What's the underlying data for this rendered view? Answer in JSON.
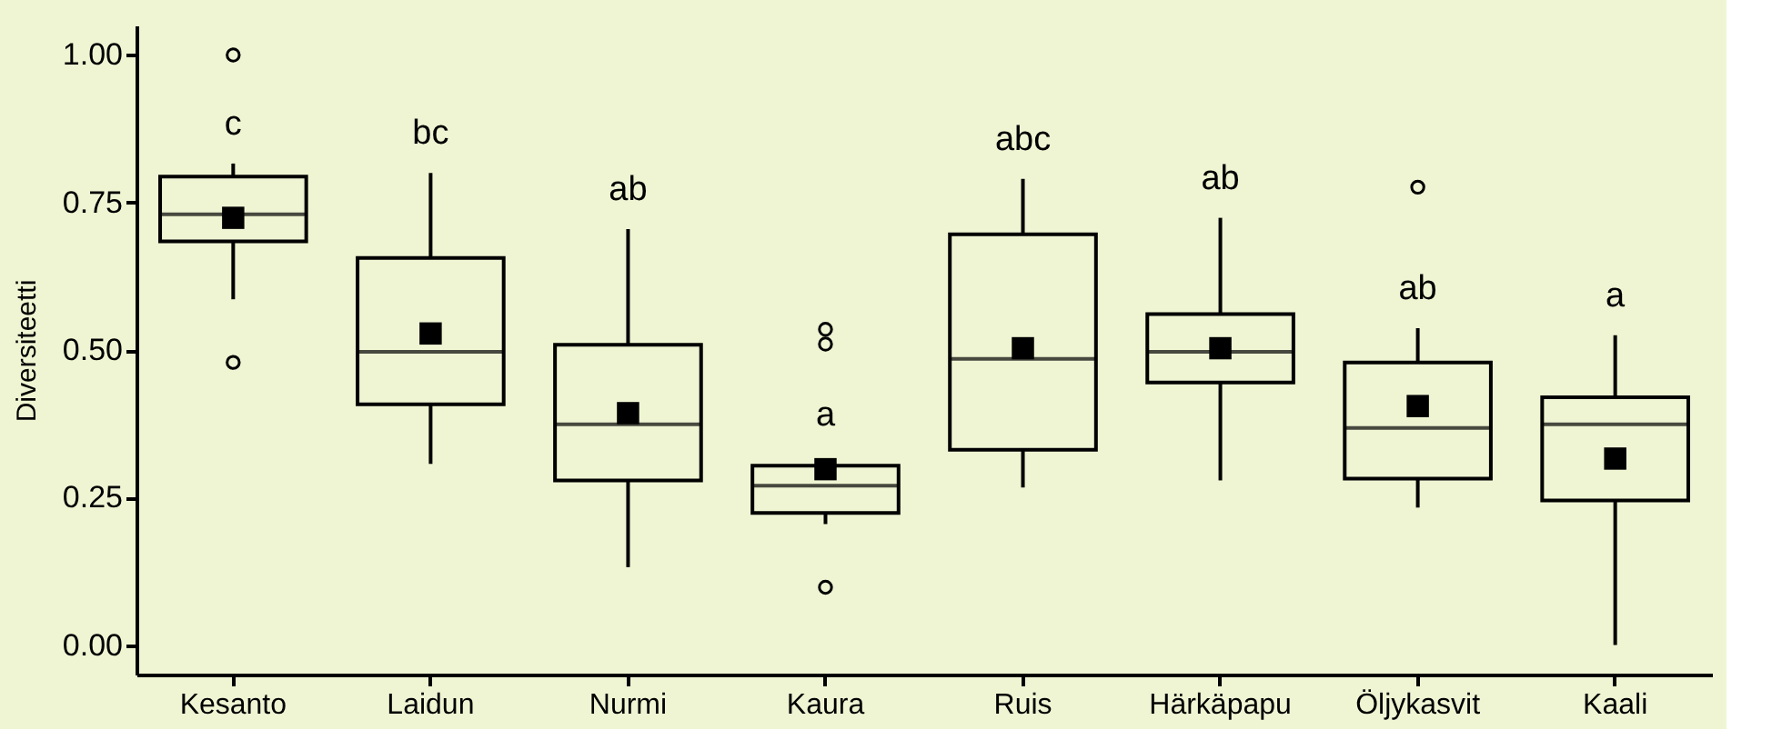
{
  "chart_data": {
    "type": "box",
    "ylabel": "Diversiteetti",
    "categories": [
      "Kesanto",
      "Laidun",
      "Nurmi",
      "Kaura",
      "Ruis",
      "Härkäpapu",
      "Öljykasvit",
      "Kaali"
    ],
    "boxes": [
      {
        "low": 0.586,
        "q1": 0.684,
        "median": 0.73,
        "q3": 0.794,
        "high": 0.816,
        "mean": 0.724,
        "outliers": [
          1.0,
          0.479
        ]
      },
      {
        "low": 0.307,
        "q1": 0.408,
        "median": 0.497,
        "q3": 0.656,
        "high": 0.8,
        "mean": 0.528
      },
      {
        "low": 0.132,
        "q1": 0.279,
        "median": 0.374,
        "q3": 0.509,
        "high": 0.705,
        "mean": 0.393
      },
      {
        "low": 0.205,
        "q1": 0.224,
        "median": 0.27,
        "q3": 0.304,
        "high": 0.304,
        "mean": 0.298,
        "outliers": [
          0.535,
          0.51,
          0.098
        ]
      },
      {
        "low": 0.267,
        "q1": 0.331,
        "median": 0.485,
        "q3": 0.696,
        "high": 0.79,
        "mean": 0.503
      },
      {
        "low": 0.279,
        "q1": 0.445,
        "median": 0.497,
        "q3": 0.561,
        "high": 0.724,
        "mean": 0.503
      },
      {
        "low": 0.233,
        "q1": 0.282,
        "median": 0.368,
        "q3": 0.479,
        "high": 0.537,
        "mean": 0.405,
        "outliers": [
          0.776
        ]
      },
      {
        "low": 0.0,
        "q1": 0.245,
        "median": 0.374,
        "q3": 0.42,
        "high": 0.525,
        "mean": 0.316
      }
    ],
    "color": "#eff5d3",
    "ylim": [
      -0.05,
      1.05
    ],
    "yticks": [
      {
        "value": 0,
        "label": "0.00"
      },
      {
        "value": 0.25,
        "label": "0.25"
      },
      {
        "value": 0.5,
        "label": "0.50"
      },
      {
        "value": 0.75,
        "label": "0.75"
      },
      {
        "value": 1,
        "label": "1.00"
      }
    ],
    "grid": false,
    "annotations": [
      "c",
      "bc",
      "ab",
      "a",
      "abc",
      "ab",
      "ab",
      "a"
    ]
  }
}
